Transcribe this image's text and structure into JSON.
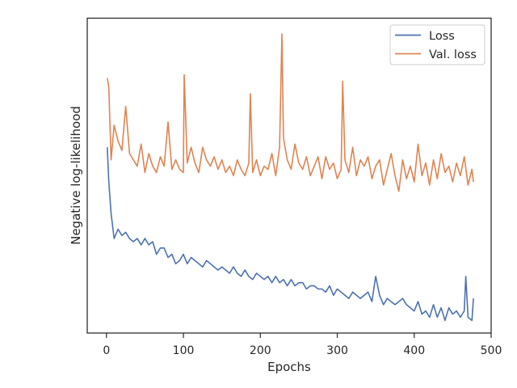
{
  "chart_data": {
    "type": "line",
    "title": "",
    "xlabel": "Epochs",
    "ylabel": "Negative log-likelihood",
    "xlim": [
      -25,
      500
    ],
    "ylim": [
      0,
      1
    ],
    "y_tick_labels_shown": false,
    "x_ticks": [
      0,
      100,
      200,
      300,
      400,
      500
    ],
    "x_tick_labels": [
      "0",
      "100",
      "200",
      "300",
      "400",
      "500"
    ],
    "grid": false,
    "legend_position": "top-right",
    "series": [
      {
        "name": "Loss",
        "color": "#4c72b0",
        "x": [
          1,
          3,
          6,
          10,
          15,
          20,
          25,
          30,
          35,
          40,
          45,
          50,
          55,
          60,
          65,
          70,
          75,
          80,
          85,
          90,
          95,
          100,
          105,
          110,
          115,
          120,
          125,
          130,
          135,
          140,
          145,
          150,
          155,
          160,
          165,
          170,
          175,
          180,
          185,
          190,
          195,
          200,
          205,
          210,
          215,
          220,
          225,
          230,
          235,
          240,
          245,
          250,
          255,
          260,
          265,
          270,
          275,
          280,
          285,
          290,
          295,
          300,
          305,
          310,
          315,
          320,
          325,
          330,
          335,
          340,
          345,
          350,
          355,
          360,
          365,
          370,
          375,
          380,
          385,
          390,
          395,
          400,
          405,
          410,
          415,
          420,
          425,
          430,
          435,
          440,
          445,
          450,
          455,
          460,
          465,
          467,
          470,
          475,
          477
        ],
        "y": [
          0.59,
          0.48,
          0.38,
          0.3,
          0.33,
          0.31,
          0.32,
          0.3,
          0.29,
          0.3,
          0.28,
          0.3,
          0.28,
          0.29,
          0.25,
          0.27,
          0.27,
          0.24,
          0.25,
          0.22,
          0.23,
          0.25,
          0.22,
          0.24,
          0.23,
          0.22,
          0.21,
          0.23,
          0.22,
          0.21,
          0.2,
          0.21,
          0.2,
          0.19,
          0.21,
          0.19,
          0.18,
          0.2,
          0.18,
          0.17,
          0.19,
          0.18,
          0.17,
          0.18,
          0.16,
          0.18,
          0.16,
          0.17,
          0.15,
          0.17,
          0.15,
          0.16,
          0.16,
          0.14,
          0.15,
          0.15,
          0.14,
          0.14,
          0.13,
          0.15,
          0.12,
          0.14,
          0.13,
          0.12,
          0.11,
          0.13,
          0.12,
          0.11,
          0.12,
          0.13,
          0.1,
          0.18,
          0.12,
          0.09,
          0.11,
          0.1,
          0.09,
          0.1,
          0.11,
          0.09,
          0.08,
          0.07,
          0.1,
          0.06,
          0.07,
          0.05,
          0.09,
          0.05,
          0.08,
          0.04,
          0.08,
          0.06,
          0.07,
          0.05,
          0.07,
          0.18,
          0.05,
          0.04,
          0.11
        ]
      },
      {
        "name": "Val. loss",
        "color": "#dd8452",
        "x": [
          1,
          3,
          6,
          10,
          15,
          20,
          25,
          30,
          35,
          40,
          45,
          50,
          55,
          60,
          65,
          70,
          75,
          80,
          85,
          90,
          95,
          100,
          101,
          105,
          110,
          115,
          120,
          125,
          130,
          135,
          140,
          145,
          150,
          155,
          160,
          165,
          170,
          175,
          180,
          185,
          187,
          190,
          195,
          200,
          205,
          210,
          215,
          220,
          225,
          228,
          230,
          235,
          240,
          245,
          250,
          255,
          260,
          265,
          270,
          275,
          280,
          285,
          290,
          295,
          300,
          305,
          307,
          310,
          315,
          320,
          325,
          330,
          335,
          340,
          345,
          350,
          355,
          360,
          365,
          370,
          375,
          380,
          385,
          390,
          395,
          400,
          405,
          410,
          415,
          420,
          425,
          430,
          435,
          440,
          445,
          450,
          455,
          460,
          465,
          470,
          475,
          477
        ],
        "y": [
          0.81,
          0.78,
          0.55,
          0.66,
          0.61,
          0.58,
          0.72,
          0.57,
          0.55,
          0.53,
          0.6,
          0.51,
          0.57,
          0.53,
          0.51,
          0.56,
          0.53,
          0.67,
          0.52,
          0.55,
          0.52,
          0.51,
          0.82,
          0.54,
          0.59,
          0.54,
          0.51,
          0.59,
          0.55,
          0.53,
          0.56,
          0.52,
          0.55,
          0.51,
          0.53,
          0.5,
          0.55,
          0.52,
          0.5,
          0.54,
          0.76,
          0.51,
          0.55,
          0.5,
          0.53,
          0.52,
          0.57,
          0.5,
          0.59,
          0.95,
          0.62,
          0.55,
          0.52,
          0.6,
          0.54,
          0.52,
          0.56,
          0.5,
          0.53,
          0.56,
          0.49,
          0.56,
          0.52,
          0.54,
          0.49,
          0.52,
          0.8,
          0.55,
          0.51,
          0.59,
          0.5,
          0.55,
          0.53,
          0.56,
          0.49,
          0.53,
          0.55,
          0.47,
          0.52,
          0.57,
          0.5,
          0.45,
          0.55,
          0.49,
          0.53,
          0.48,
          0.6,
          0.5,
          0.54,
          0.47,
          0.55,
          0.49,
          0.57,
          0.51,
          0.53,
          0.48,
          0.54,
          0.5,
          0.56,
          0.47,
          0.52,
          0.48
        ]
      }
    ]
  }
}
